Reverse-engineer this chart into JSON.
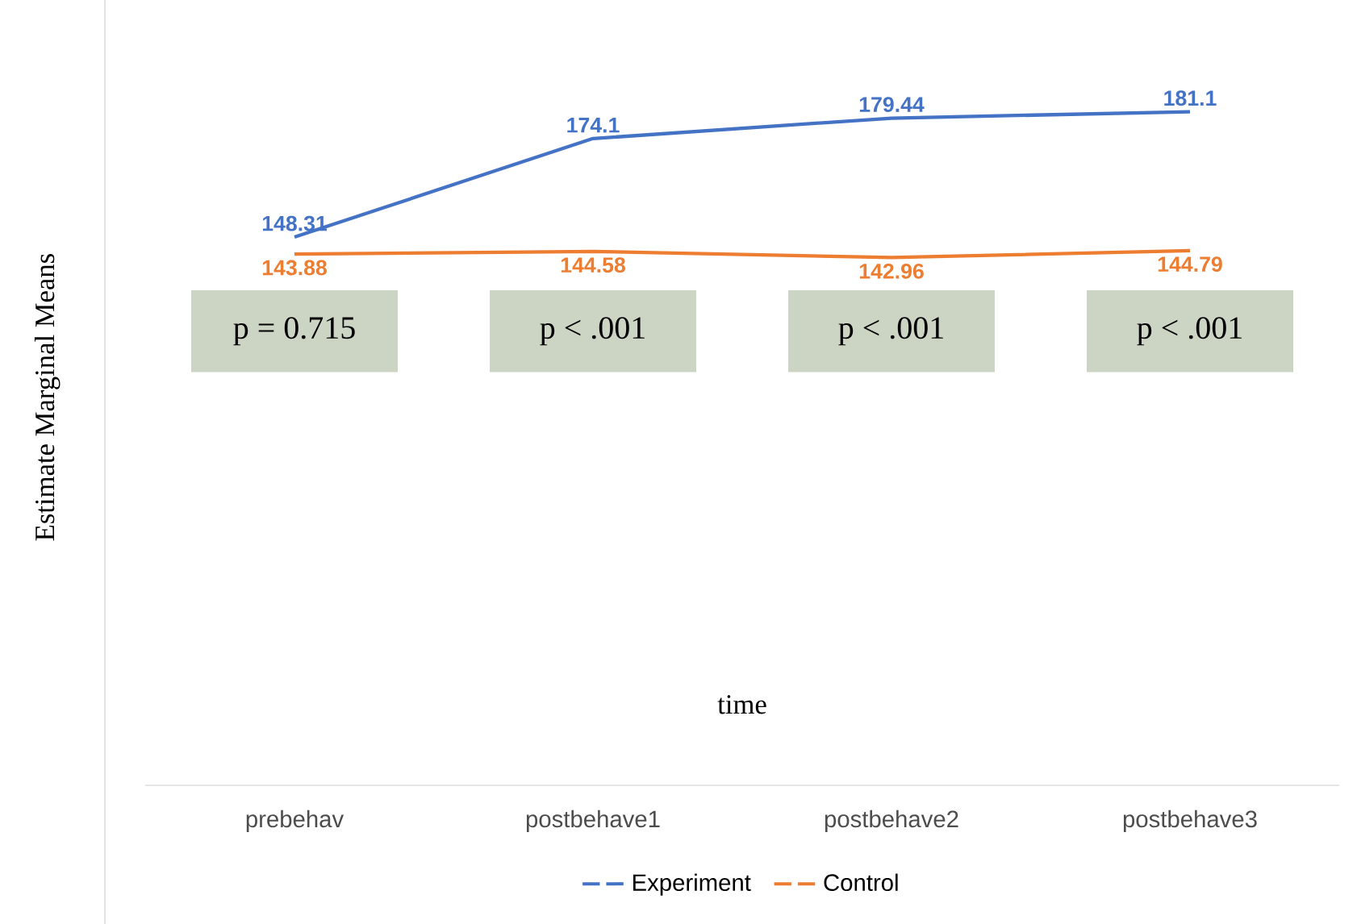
{
  "chart_data": {
    "type": "line",
    "xlabel": "time",
    "ylabel": "Estimate Marginal Means",
    "categories": [
      "prebehav",
      "postbehave1",
      "postbehave2",
      "postbehave3"
    ],
    "series": [
      {
        "name": "Experiment",
        "color": "#4472c4",
        "values": [
          148.31,
          174.1,
          179.44,
          181.1
        ]
      },
      {
        "name": "Control",
        "color": "#ed7d31",
        "values": [
          143.88,
          144.58,
          142.96,
          144.79
        ]
      }
    ],
    "tick_labels": "x",
    "data_labels": true,
    "legend": "bottom",
    "marker": "none",
    "line_style": "solid",
    "grid": false,
    "annotations": [
      "p = 0.715",
      "p < .001",
      "p < .001",
      "p < .001"
    ]
  }
}
